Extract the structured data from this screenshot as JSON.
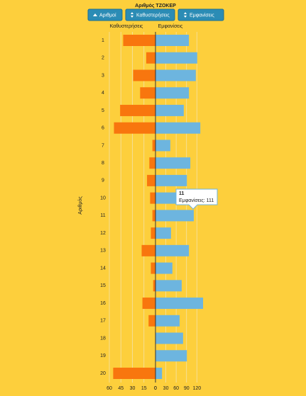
{
  "controls": {
    "buttons": [
      "Αριθμοί",
      "Καθυστερήσεις",
      "Εμφανίσεις"
    ]
  },
  "chart_data": {
    "type": "diverging-bar",
    "title": "Αριθμός ΤΖΟΚΕΡ",
    "y_label": "Αριθμός",
    "categories": [
      "1",
      "2",
      "3",
      "4",
      "5",
      "6",
      "7",
      "8",
      "9",
      "10",
      "11",
      "12",
      "13",
      "14",
      "15",
      "16",
      "17",
      "18",
      "19",
      "20"
    ],
    "series": [
      {
        "name": "Καθυστερήσεις",
        "color": "#f8760e",
        "axis": "x",
        "values": [
          42,
          12,
          29,
          20,
          46,
          54,
          4,
          8,
          11,
          7,
          4,
          6,
          18,
          6,
          3,
          17,
          9,
          0,
          0,
          55
        ]
      },
      {
        "name": "Εμφανίσεις",
        "color": "#6db5df",
        "axis": "x2",
        "values": [
          97,
          121,
          117,
          97,
          82,
          130,
          43,
          101,
          91,
          64,
          111,
          45,
          97,
          49,
          76,
          138,
          70,
          80,
          91,
          19
        ]
      }
    ],
    "xlim": [
      0,
      60
    ],
    "xticks": [
      60,
      45,
      30,
      15,
      0
    ],
    "x2lim": [
      0,
      140
    ],
    "x2ticks": [
      0,
      30,
      60,
      90,
      120
    ],
    "grid": true,
    "tooltip": {
      "title": "11",
      "text": "Εμφανίσεις: 111"
    }
  }
}
